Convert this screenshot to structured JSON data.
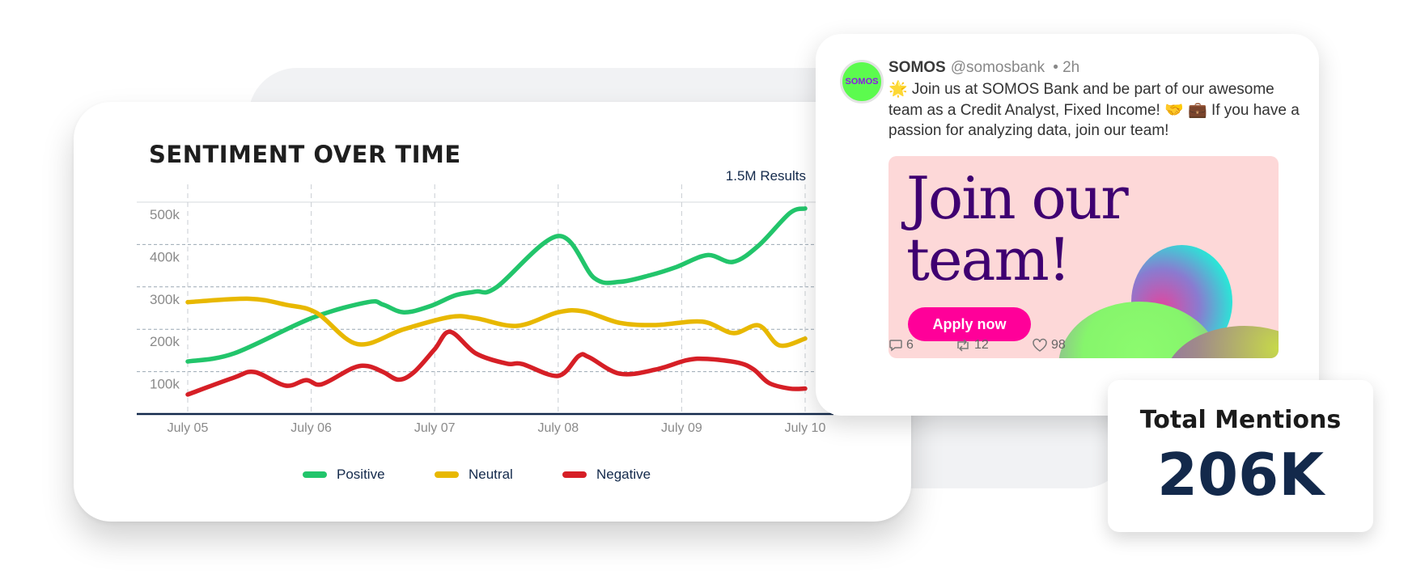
{
  "chart_card": {
    "title": "SENTIMENT OVER TIME",
    "results": "1.5M Results"
  },
  "chart_data": {
    "type": "line",
    "title": "SENTIMENT OVER TIME",
    "x_tick_labels": [
      "July 05",
      "July 06",
      "July 07",
      "July 08",
      "July 09",
      "July 10"
    ],
    "x_ticks": [
      "07-05 00:00",
      "07-06 00:00",
      "07-07 00:00",
      "07-08 00:00",
      "07-09 00:00",
      "07-10 00:00"
    ],
    "y_tick_labels": [
      "100k",
      "200k",
      "300k",
      "400k",
      "500k"
    ],
    "y_ticks": [
      100000,
      200000,
      300000,
      400000,
      500000
    ],
    "ylim": [
      0,
      500000
    ],
    "grid": "horizontal dashed + vertical dashed",
    "legend_position": "bottom",
    "series": [
      {
        "name": "Positive",
        "color": "#22c56b",
        "points": [
          [
            "07-05 00:00",
            124000
          ],
          [
            "07-05 09:00",
            143000
          ],
          [
            "07-06 00:00",
            226000
          ],
          [
            "07-06 11:00",
            264000
          ],
          [
            "07-06 14:00",
            258000
          ],
          [
            "07-06 18:00",
            240000
          ],
          [
            "07-06 23:00",
            254000
          ],
          [
            "07-07 04:00",
            280000
          ],
          [
            "07-07 08:00",
            289000
          ],
          [
            "07-07 12:00",
            299000
          ],
          [
            "07-08 00:00",
            420000
          ],
          [
            "07-08 07:00",
            321000
          ],
          [
            "07-08 12:00",
            312000
          ],
          [
            "07-08 18:00",
            328000
          ],
          [
            "07-08 23:00",
            347000
          ],
          [
            "07-09 05:00",
            375000
          ],
          [
            "07-09 10:00",
            359000
          ],
          [
            "07-09 15:00",
            398000
          ],
          [
            "07-09 21:00",
            474000
          ],
          [
            "07-10 00:00",
            485000
          ]
        ]
      },
      {
        "name": "Neutral",
        "color": "#e8b800",
        "points": [
          [
            "07-05 00:00",
            264000
          ],
          [
            "07-05 12:00",
            272000
          ],
          [
            "07-05 19:00",
            258000
          ],
          [
            "07-06 01:00",
            239000
          ],
          [
            "07-06 09:00",
            165000
          ],
          [
            "07-06 18:00",
            200000
          ],
          [
            "07-07 03:00",
            229000
          ],
          [
            "07-07 08:00",
            226000
          ],
          [
            "07-07 16:00",
            208000
          ],
          [
            "07-08 00:00",
            240000
          ],
          [
            "07-08 05:00",
            242000
          ],
          [
            "07-08 12:00",
            215000
          ],
          [
            "07-08 19:00",
            210000
          ],
          [
            "07-09 04:00",
            218000
          ],
          [
            "07-09 10:00",
            191000
          ],
          [
            "07-09 15:00",
            209000
          ],
          [
            "07-09 19:00",
            162000
          ],
          [
            "07-10 00:00",
            178000
          ]
        ]
      },
      {
        "name": "Negative",
        "color": "#d61f26",
        "points": [
          [
            "07-05 00:00",
            46000
          ],
          [
            "07-05 09:00",
            86000
          ],
          [
            "07-05 13:00",
            99000
          ],
          [
            "07-05 19:00",
            67000
          ],
          [
            "07-05 23:00",
            80000
          ],
          [
            "07-06 02:00",
            70000
          ],
          [
            "07-06 08:00",
            108000
          ],
          [
            "07-06 11:00",
            113000
          ],
          [
            "07-06 14:00",
            99000
          ],
          [
            "07-06 17:00",
            81000
          ],
          [
            "07-06 20:00",
            99000
          ],
          [
            "07-07 00:00",
            153000
          ],
          [
            "07-07 03:00",
            194000
          ],
          [
            "07-07 08:00",
            143000
          ],
          [
            "07-07 14:00",
            119000
          ],
          [
            "07-07 17:00",
            118000
          ],
          [
            "07-08 00:00",
            90000
          ],
          [
            "07-08 04:00",
            137000
          ],
          [
            "07-08 06:00",
            134000
          ],
          [
            "07-08 12:00",
            95000
          ],
          [
            "07-08 19:00",
            105000
          ],
          [
            "07-09 01:00",
            127000
          ],
          [
            "07-09 05:00",
            130000
          ],
          [
            "07-09 11:00",
            121000
          ],
          [
            "07-09 14:00",
            105000
          ],
          [
            "07-09 17:00",
            73000
          ],
          [
            "07-09 21:00",
            60000
          ],
          [
            "07-10 00:00",
            60000
          ]
        ]
      }
    ]
  },
  "tweet": {
    "avatar_text": "SOMOS",
    "name": "SOMOS",
    "handle": "@somosbank",
    "time": "• 2h",
    "body": "🌟 Join us at SOMOS Bank and be part of our awesome team as a Credit Analyst, Fixed Income! 🤝 💼 If you have a passion for analyzing data, join our team!",
    "promo": {
      "headline_line1": "Join our",
      "headline_line2": "team!",
      "button": "Apply now",
      "background": "#fdd8d8",
      "headline_color": "#3f0071",
      "button_color": "#ff0099"
    },
    "actions": {
      "comments": "6",
      "retweets": "12",
      "likes": "98"
    }
  },
  "mentions": {
    "title": "Total Mentions",
    "value": "206K"
  }
}
